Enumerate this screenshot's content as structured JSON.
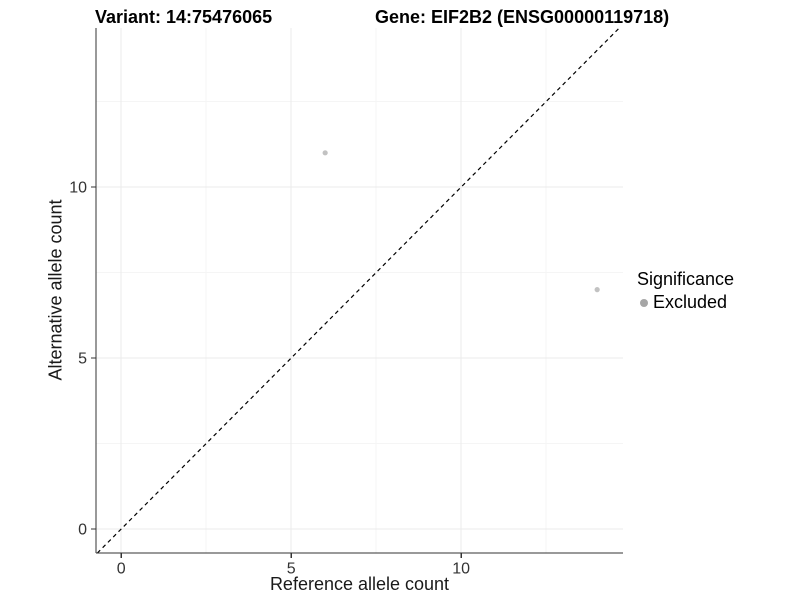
{
  "chart_data": {
    "type": "scatter",
    "title_left": "Variant: 14:75476065",
    "title_right": "Gene: EIF2B2 (ENSG00000119718)",
    "xlabel": "Reference allele count",
    "ylabel": "Alternative allele count",
    "xlim": [
      -0.74,
      14.76
    ],
    "ylim": [
      -0.7,
      14.65
    ],
    "x_major_ticks": [
      0,
      5,
      10
    ],
    "y_major_ticks": [
      0,
      5,
      10
    ],
    "x_minor_ticks": [
      2.5,
      7.5,
      12.5
    ],
    "y_minor_ticks": [
      2.5,
      7.5,
      12.5
    ],
    "x_tick_labels": [
      "0",
      "5",
      "10"
    ],
    "y_tick_labels": [
      "0",
      "5",
      "10"
    ],
    "grid": true,
    "series": [
      {
        "name": "Excluded",
        "color": "#c2c2c2",
        "points": [
          {
            "x": 6,
            "y": 11
          },
          {
            "x": 14,
            "y": 7
          }
        ]
      }
    ],
    "reference_line": {
      "type": "identity",
      "style": "dashed",
      "color": "#000000"
    },
    "legend": {
      "title": "Significance",
      "position": "right",
      "items": [
        {
          "label": "Excluded",
          "color": "#a6a6a6"
        }
      ]
    }
  },
  "colors": {
    "background": "#ffffff",
    "axis_line": "#333333",
    "tick_mark": "#333333",
    "tick_label": "#333333",
    "axis_title": "#1a1a1a",
    "title": "#000000",
    "grid_major": "#ebebeb",
    "grid_minor": "#f5f5f5"
  }
}
